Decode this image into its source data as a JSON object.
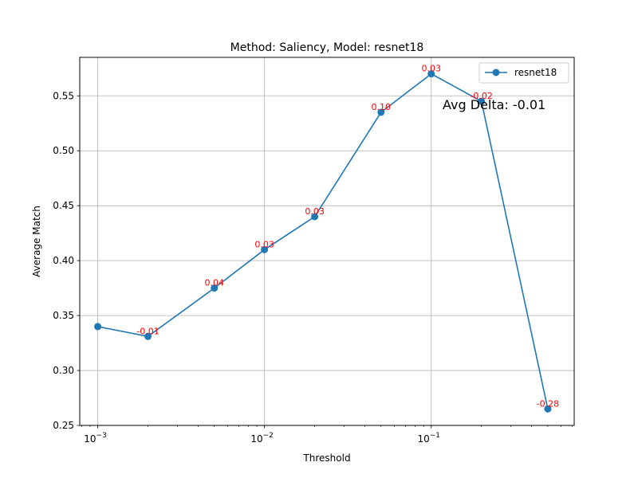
{
  "chart_data": {
    "type": "line",
    "title": "Method: Saliency, Model: resnet18",
    "xlabel": "Threshold",
    "ylabel": "Average Match",
    "xscale": "log",
    "xlim": [
      0.00078,
      0.72
    ],
    "ylim": [
      0.25,
      0.585
    ],
    "grid": true,
    "legend": {
      "placement": "top-right",
      "entries": [
        "resnet18"
      ]
    },
    "x_ticks": [
      {
        "value": 0.001,
        "base": "10",
        "exp": "−3"
      },
      {
        "value": 0.01,
        "base": "10",
        "exp": "−2"
      },
      {
        "value": 0.1,
        "base": "10",
        "exp": "−1"
      }
    ],
    "y_ticks": [
      {
        "value": 0.25,
        "label": "0.25"
      },
      {
        "value": 0.3,
        "label": "0.30"
      },
      {
        "value": 0.35,
        "label": "0.35"
      },
      {
        "value": 0.4,
        "label": "0.40"
      },
      {
        "value": 0.45,
        "label": "0.45"
      },
      {
        "value": 0.5,
        "label": "0.50"
      },
      {
        "value": 0.55,
        "label": "0.55"
      }
    ],
    "series": [
      {
        "name": "resnet18",
        "color": "#1f77b4",
        "x": [
          0.001,
          0.002,
          0.005,
          0.01,
          0.02,
          0.05,
          0.1,
          0.2,
          0.5
        ],
        "y": [
          0.34,
          0.331,
          0.375,
          0.41,
          0.44,
          0.535,
          0.57,
          0.545,
          0.265
        ]
      }
    ],
    "annotations": {
      "color": "#ff0000",
      "labels": [
        "",
        "-0.01",
        "0.04",
        "0.03",
        "0.03",
        "0.10",
        "0.03",
        "-0.02",
        "-0.28"
      ]
    },
    "summary_text": "Avg Delta: -0.01"
  }
}
